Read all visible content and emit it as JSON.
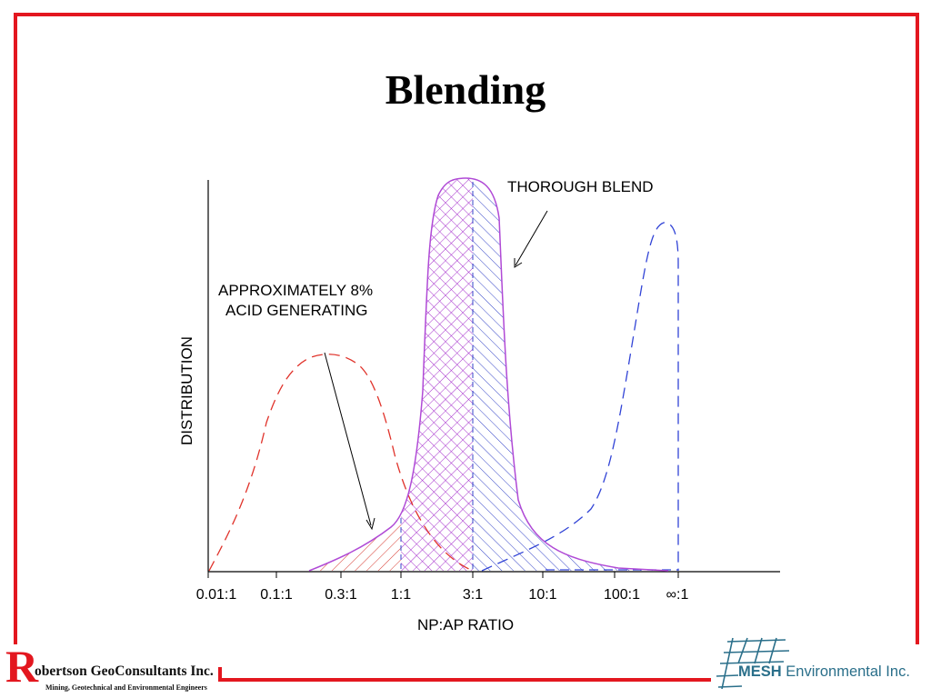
{
  "title": "Blending",
  "colors": {
    "frame": "#e3171f",
    "blend_curve": "#b04ad6",
    "hatch_red": "#d6362c",
    "hatch_purple": "#a52fcc",
    "hatch_blue": "#3646c8",
    "left_dist": "#e0322a",
    "right_dist": "#3143d6",
    "axis": "#000000"
  },
  "chart_data": {
    "type": "line",
    "title": "Blending",
    "xlabel": "NP:AP RATIO",
    "ylabel": "DISTRIBUTION",
    "x_scale": "log",
    "x_ticks": [
      "0.01:1",
      "0.1:1",
      "0.3:1",
      "1:1",
      "3:1",
      "10:1",
      "100:1",
      "∞:1"
    ],
    "series": [
      {
        "style": "dashed",
        "color": "#e0322a",
        "points": [
          [
            0.01,
            0
          ],
          [
            0.02,
            0.12
          ],
          [
            0.05,
            0.26
          ],
          [
            0.1,
            0.38
          ],
          [
            0.2,
            0.52
          ],
          [
            0.35,
            0.55
          ],
          [
            0.6,
            0.48
          ],
          [
            1.0,
            0.34
          ],
          [
            1.6,
            0.18
          ],
          [
            2.5,
            0.08
          ],
          [
            3.0,
            0
          ]
        ]
      },
      {
        "name": "THOROUGH BLEND",
        "style": "solid",
        "color": "#b04ad6",
        "points": [
          [
            0.2,
            0
          ],
          [
            0.4,
            0.02
          ],
          [
            0.8,
            0.07
          ],
          [
            1.2,
            0.2
          ],
          [
            1.6,
            0.55
          ],
          [
            2.0,
            0.9
          ],
          [
            2.7,
            1.0
          ],
          [
            3.5,
            0.92
          ],
          [
            4.2,
            0.55
          ],
          [
            5.5,
            0.2
          ],
          [
            10,
            0.06
          ],
          [
            30,
            0.01
          ],
          [
            100,
            0
          ]
        ]
      },
      {
        "style": "dashed",
        "color": "#3143d6",
        "points": [
          [
            3,
            0
          ],
          [
            10,
            0.05
          ],
          [
            30,
            0.15
          ],
          [
            60,
            0.45
          ],
          [
            90,
            0.82
          ],
          [
            110,
            0.9
          ],
          [
            130,
            0.85
          ],
          [
            140,
            0
          ]
        ]
      }
    ],
    "annotations": [
      {
        "lines": [
          "APPROXIMATELY 8%",
          "ACID GENERATING"
        ]
      },
      {
        "lines": [
          "THOROUGH BLEND"
        ]
      }
    ]
  },
  "logos": {
    "left_initial": "R",
    "left_name": "obertson GeoConsultants Inc.",
    "left_tagline": "Mining, Geotechnical and Environmental Engineers",
    "right_name_bold": "MESH",
    "right_name_rest": " Environmental Inc."
  }
}
